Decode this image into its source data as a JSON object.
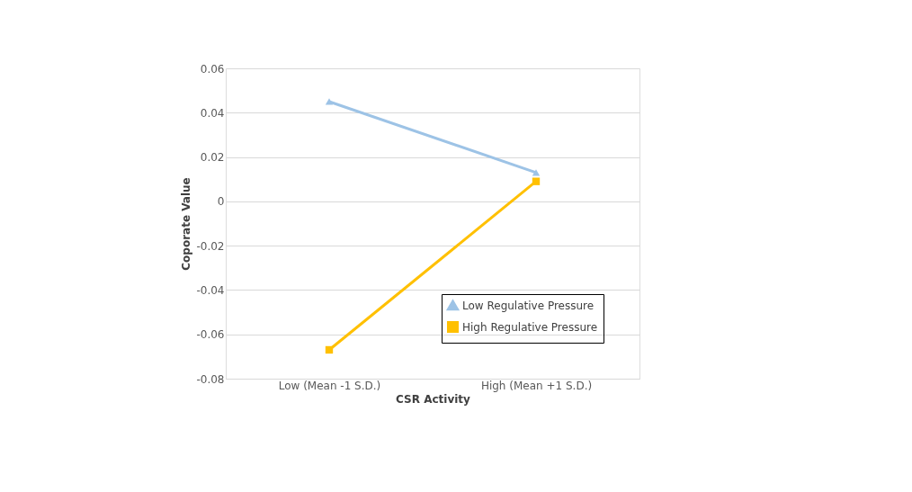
{
  "chart_data": {
    "type": "line",
    "xlabel": "CSR Activity",
    "ylabel": "Coporate Value",
    "categories": [
      "Low (Mean -1 S.D.)",
      "High (Mean +1 S.D.)"
    ],
    "series": [
      {
        "name": "Low Regulative Pressure",
        "color": "#9dc3e6",
        "marker": "triangle",
        "values": [
          0.045,
          0.013
        ]
      },
      {
        "name": "High Regulative Pressure",
        "color": "#ffc000",
        "marker": "square",
        "values": [
          -0.067,
          0.009
        ]
      }
    ],
    "ylim": [
      -0.08,
      0.06
    ],
    "yticks": [
      -0.08,
      -0.06,
      -0.04,
      -0.02,
      0,
      0.02,
      0.04,
      0.06
    ],
    "grid": "y",
    "legend": "bottom right",
    "line_style": "solid"
  }
}
